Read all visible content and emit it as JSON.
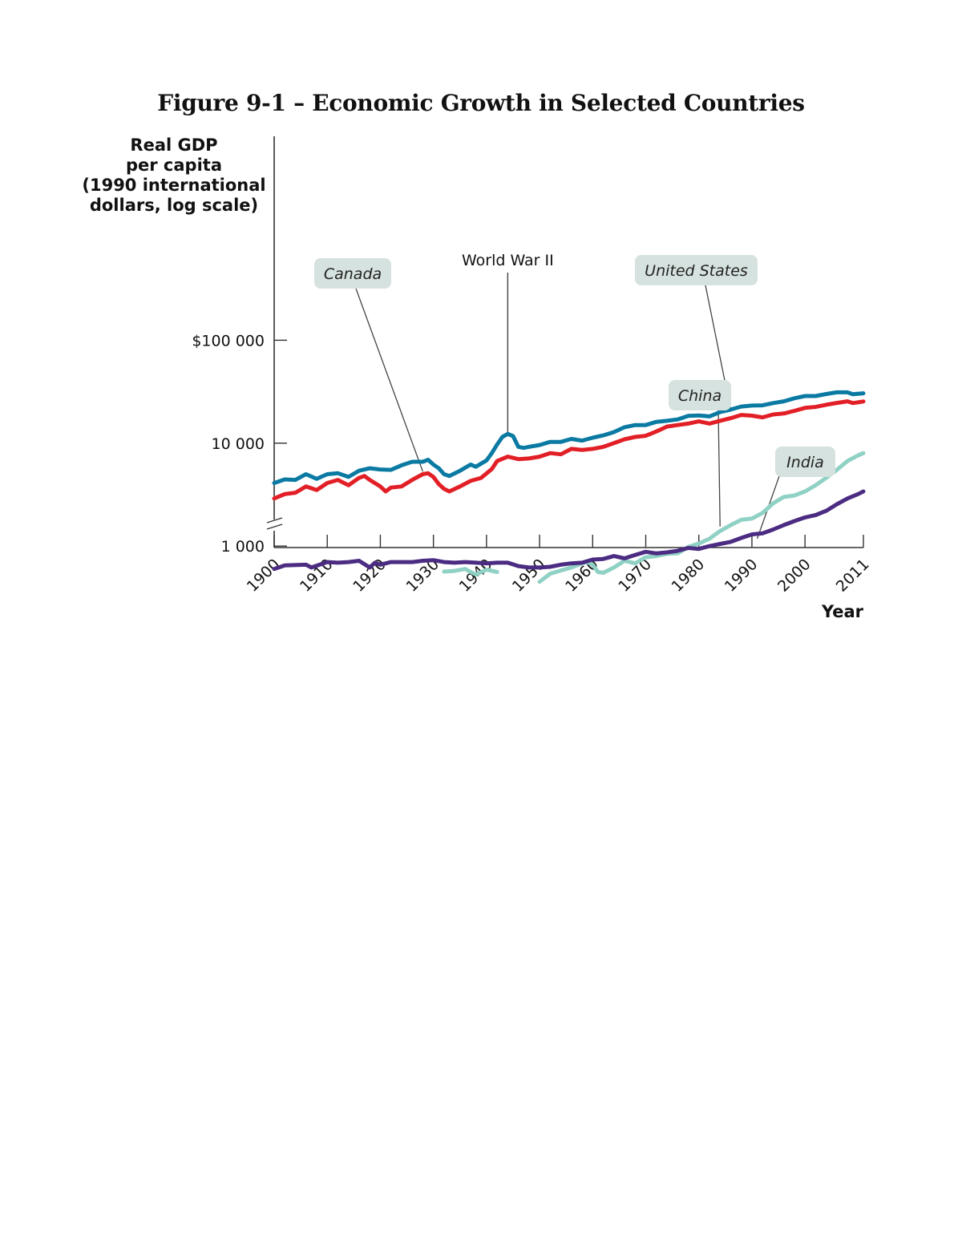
{
  "page": {
    "title": "Figure 9-1 – Economic Growth in Selected Countries"
  },
  "chart_data": {
    "type": "line",
    "title": "Figure 9-1 – Economic Growth in Selected Countries",
    "ylabel_lines": [
      "Real GDP",
      "per capita",
      "(1990 international",
      "dollars, log scale)"
    ],
    "xlabel": "Year",
    "y_scale": "log",
    "ylim": [
      150,
      300000
    ],
    "xlim": [
      1900,
      2011
    ],
    "y_ticks": [
      {
        "value": 100000,
        "label": "$100 000"
      },
      {
        "value": 10000,
        "label": "10 000"
      },
      {
        "value": 1000,
        "label": "1 000"
      }
    ],
    "x_ticks": [
      1900,
      1910,
      1920,
      1930,
      1940,
      1950,
      1960,
      1970,
      1980,
      1990,
      2000,
      2011
    ],
    "axis_break": true,
    "grid": false,
    "legend": "inline callout labels",
    "annotations": [
      {
        "text": "World War II",
        "x": 1944,
        "y": 12000
      }
    ],
    "series": [
      {
        "name": "United States",
        "color": "#0b7aa3",
        "label_anchor": {
          "x": 1986,
          "y": 21000
        },
        "points": [
          [
            1900,
            4100
          ],
          [
            1902,
            4450
          ],
          [
            1904,
            4400
          ],
          [
            1906,
            5000
          ],
          [
            1908,
            4500
          ],
          [
            1910,
            5000
          ],
          [
            1912,
            5100
          ],
          [
            1914,
            4700
          ],
          [
            1916,
            5400
          ],
          [
            1918,
            5700
          ],
          [
            1920,
            5550
          ],
          [
            1922,
            5500
          ],
          [
            1924,
            6100
          ],
          [
            1926,
            6600
          ],
          [
            1928,
            6600
          ],
          [
            1929,
            6900
          ],
          [
            1930,
            6200
          ],
          [
            1931,
            5700
          ],
          [
            1932,
            5000
          ],
          [
            1933,
            4800
          ],
          [
            1935,
            5400
          ],
          [
            1937,
            6200
          ],
          [
            1938,
            5900
          ],
          [
            1940,
            6800
          ],
          [
            1941,
            8000
          ],
          [
            1942,
            9700
          ],
          [
            1943,
            11500
          ],
          [
            1944,
            12300
          ],
          [
            1945,
            11700
          ],
          [
            1946,
            9200
          ],
          [
            1947,
            9000
          ],
          [
            1948,
            9200
          ],
          [
            1950,
            9600
          ],
          [
            1952,
            10300
          ],
          [
            1954,
            10300
          ],
          [
            1956,
            11000
          ],
          [
            1958,
            10600
          ],
          [
            1960,
            11300
          ],
          [
            1962,
            11900
          ],
          [
            1964,
            12800
          ],
          [
            1966,
            14300
          ],
          [
            1968,
            15000
          ],
          [
            1970,
            15000
          ],
          [
            1972,
            16100
          ],
          [
            1974,
            16500
          ],
          [
            1976,
            17000
          ],
          [
            1978,
            18400
          ],
          [
            1980,
            18600
          ],
          [
            1982,
            18200
          ],
          [
            1984,
            20000
          ],
          [
            1986,
            21200
          ],
          [
            1988,
            22700
          ],
          [
            1990,
            23200
          ],
          [
            1992,
            23300
          ],
          [
            1994,
            24500
          ],
          [
            1996,
            25500
          ],
          [
            1998,
            27300
          ],
          [
            2000,
            28700
          ],
          [
            2002,
            28700
          ],
          [
            2004,
            30000
          ],
          [
            2006,
            31200
          ],
          [
            2008,
            31200
          ],
          [
            2009,
            29900
          ],
          [
            2011,
            30500
          ]
        ]
      },
      {
        "name": "Canada",
        "color": "#e21f26",
        "label_anchor": {
          "x": 1928,
          "y": 5300
        },
        "points": [
          [
            1900,
            2900
          ],
          [
            1902,
            3200
          ],
          [
            1904,
            3300
          ],
          [
            1906,
            3800
          ],
          [
            1908,
            3500
          ],
          [
            1910,
            4100
          ],
          [
            1912,
            4400
          ],
          [
            1914,
            3900
          ],
          [
            1916,
            4600
          ],
          [
            1917,
            4800
          ],
          [
            1918,
            4400
          ],
          [
            1920,
            3800
          ],
          [
            1921,
            3400
          ],
          [
            1922,
            3700
          ],
          [
            1924,
            3800
          ],
          [
            1926,
            4400
          ],
          [
            1928,
            5000
          ],
          [
            1929,
            5100
          ],
          [
            1930,
            4700
          ],
          [
            1931,
            4000
          ],
          [
            1932,
            3600
          ],
          [
            1933,
            3400
          ],
          [
            1935,
            3800
          ],
          [
            1937,
            4300
          ],
          [
            1939,
            4600
          ],
          [
            1941,
            5600
          ],
          [
            1942,
            6700
          ],
          [
            1944,
            7400
          ],
          [
            1946,
            7000
          ],
          [
            1948,
            7100
          ],
          [
            1950,
            7400
          ],
          [
            1952,
            8000
          ],
          [
            1954,
            7800
          ],
          [
            1956,
            8800
          ],
          [
            1958,
            8600
          ],
          [
            1960,
            8800
          ],
          [
            1962,
            9200
          ],
          [
            1964,
            10000
          ],
          [
            1966,
            10900
          ],
          [
            1968,
            11500
          ],
          [
            1970,
            11800
          ],
          [
            1972,
            13000
          ],
          [
            1974,
            14500
          ],
          [
            1976,
            15000
          ],
          [
            1978,
            15500
          ],
          [
            1980,
            16300
          ],
          [
            1982,
            15500
          ],
          [
            1984,
            16500
          ],
          [
            1986,
            17500
          ],
          [
            1988,
            18800
          ],
          [
            1990,
            18500
          ],
          [
            1992,
            17800
          ],
          [
            1994,
            19000
          ],
          [
            1996,
            19400
          ],
          [
            1998,
            20600
          ],
          [
            2000,
            22000
          ],
          [
            2002,
            22500
          ],
          [
            2004,
            23600
          ],
          [
            2006,
            24600
          ],
          [
            2008,
            25500
          ],
          [
            2009,
            24500
          ],
          [
            2011,
            25400
          ]
        ]
      },
      {
        "name": "China",
        "color": "#8fd1c4",
        "label_anchor": {
          "x": 1984,
          "y": 1550
        },
        "segments": [
          [
            [
              1932,
              565
            ],
            [
              1934,
              575
            ],
            [
              1936,
              600
            ],
            [
              1937,
              560
            ],
            [
              1938,
              530
            ],
            [
              1940,
              590
            ],
            [
              1942,
              560
            ]
          ],
          [
            [
              1950,
              450
            ],
            [
              1952,
              540
            ],
            [
              1954,
              580
            ],
            [
              1956,
              620
            ],
            [
              1958,
              680
            ],
            [
              1959,
              700
            ],
            [
              1960,
              660
            ],
            [
              1961,
              560
            ],
            [
              1962,
              550
            ],
            [
              1964,
              620
            ],
            [
              1966,
              720
            ],
            [
              1968,
              680
            ],
            [
              1970,
              780
            ],
            [
              1972,
              800
            ],
            [
              1974,
              840
            ],
            [
              1976,
              850
            ],
            [
              1978,
              980
            ],
            [
              1980,
              1060
            ],
            [
              1982,
              1180
            ],
            [
              1984,
              1400
            ],
            [
              1986,
              1600
            ],
            [
              1988,
              1800
            ],
            [
              1990,
              1850
            ],
            [
              1992,
              2100
            ],
            [
              1994,
              2600
            ],
            [
              1996,
              3000
            ],
            [
              1998,
              3100
            ],
            [
              2000,
              3400
            ],
            [
              2002,
              3900
            ],
            [
              2004,
              4600
            ],
            [
              2006,
              5500
            ],
            [
              2008,
              6700
            ],
            [
              2010,
              7600
            ],
            [
              2011,
              8000
            ]
          ]
        ]
      },
      {
        "name": "India",
        "color": "#4b2c82",
        "label_anchor": {
          "x": 1991,
          "y": 1180
        },
        "points": [
          [
            1900,
            600
          ],
          [
            1902,
            650
          ],
          [
            1906,
            660
          ],
          [
            1907,
            620
          ],
          [
            1910,
            700
          ],
          [
            1912,
            690
          ],
          [
            1914,
            700
          ],
          [
            1916,
            720
          ],
          [
            1918,
            620
          ],
          [
            1919,
            690
          ],
          [
            1920,
            660
          ],
          [
            1922,
            700
          ],
          [
            1924,
            700
          ],
          [
            1926,
            700
          ],
          [
            1928,
            720
          ],
          [
            1930,
            730
          ],
          [
            1932,
            700
          ],
          [
            1934,
            690
          ],
          [
            1936,
            700
          ],
          [
            1938,
            690
          ],
          [
            1940,
            680
          ],
          [
            1942,
            690
          ],
          [
            1944,
            690
          ],
          [
            1946,
            640
          ],
          [
            1948,
            620
          ],
          [
            1950,
            620
          ],
          [
            1952,
            630
          ],
          [
            1954,
            660
          ],
          [
            1956,
            680
          ],
          [
            1958,
            690
          ],
          [
            1960,
            740
          ],
          [
            1962,
            750
          ],
          [
            1964,
            800
          ],
          [
            1966,
            760
          ],
          [
            1968,
            820
          ],
          [
            1970,
            880
          ],
          [
            1972,
            850
          ],
          [
            1974,
            870
          ],
          [
            1976,
            900
          ],
          [
            1978,
            960
          ],
          [
            1980,
            940
          ],
          [
            1982,
            1000
          ],
          [
            1984,
            1050
          ],
          [
            1986,
            1100
          ],
          [
            1988,
            1200
          ],
          [
            1990,
            1300
          ],
          [
            1992,
            1330
          ],
          [
            1994,
            1450
          ],
          [
            1996,
            1600
          ],
          [
            1998,
            1750
          ],
          [
            2000,
            1900
          ],
          [
            2002,
            2000
          ],
          [
            2004,
            2200
          ],
          [
            2006,
            2550
          ],
          [
            2008,
            2900
          ],
          [
            2010,
            3200
          ],
          [
            2011,
            3400
          ]
        ]
      }
    ]
  }
}
